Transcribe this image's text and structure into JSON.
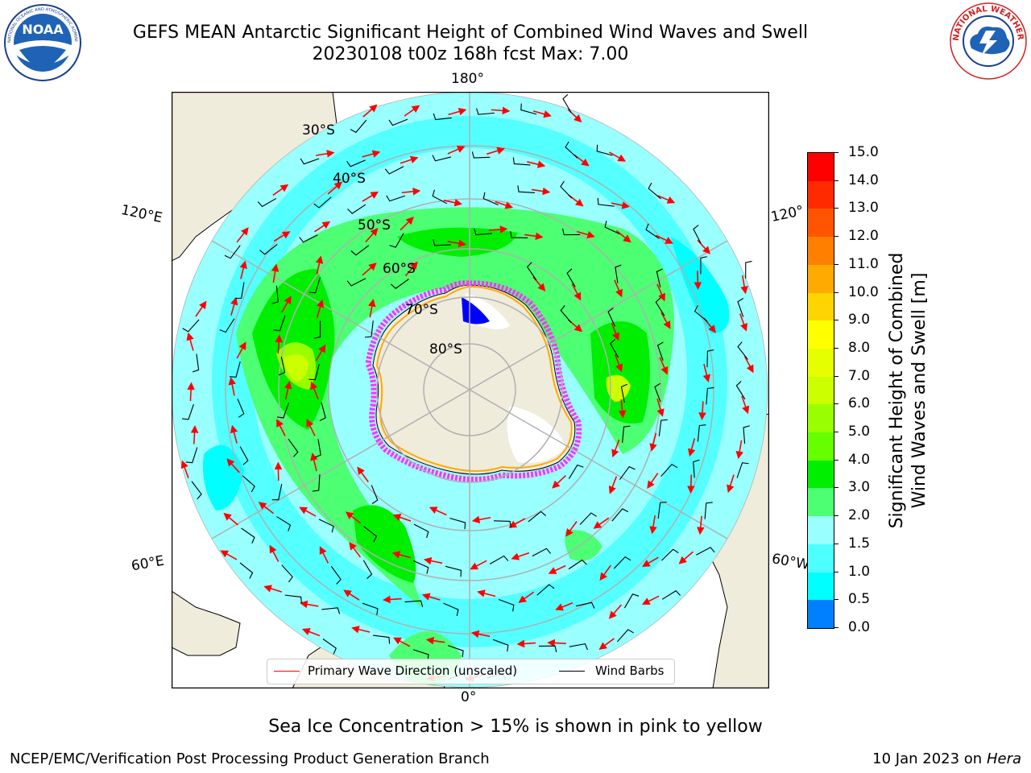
{
  "title": {
    "line1": "GEFS MEAN Antarctic Significant Height of Combined Wind Waves and Swell",
    "line2": "20230108 t00z 168h fcst   Max: 7.00"
  },
  "logos": {
    "left": {
      "text": "NOAA",
      "ring_text": "NATIONAL OCEANIC AND ATMOSPHERIC ADMINISTRATION · U.S. DEPARTMENT OF COMMERCE"
    },
    "right": {
      "ring_text": "NATIONAL WEATHER SERVICE"
    }
  },
  "map": {
    "longitude_labels": {
      "top": "180°",
      "bottom": "0°",
      "upper_left": "120°E",
      "upper_right": "120°",
      "lower_left": "60°E",
      "lower_right": "60°W"
    },
    "latitude_labels": [
      "30°S",
      "40°S",
      "50°S",
      "60°S",
      "70°S",
      "80°S"
    ]
  },
  "legend": {
    "wave_direction": "Primary Wave Direction (unscaled)",
    "wind_barbs": "Wind Barbs"
  },
  "colorbar": {
    "label_line1": "Significant Height of Combined",
    "label_line2": "Wind Waves and Swell [m]",
    "ticks": [
      "15.0",
      "14.0",
      "13.0",
      "12.0",
      "11.0",
      "10.0",
      "9.0",
      "8.0",
      "7.0",
      "6.0",
      "5.0",
      "4.0",
      "3.0",
      "2.0",
      "1.5",
      "1.0",
      "0.5",
      "0.0"
    ],
    "colors": [
      "#ff0000",
      "#ff2a00",
      "#ff5500",
      "#ff8000",
      "#ffaa00",
      "#ffd400",
      "#ffff00",
      "#e6ff00",
      "#ccff00",
      "#99ff00",
      "#66ff00",
      "#00ee00",
      "#4dff73",
      "#99ffff",
      "#4dffff",
      "#00ffff",
      "#0080ff",
      "#0000ff"
    ]
  },
  "colors": {
    "land": "#efecdc",
    "ice_pink": "#ff33ff",
    "wave_arrow": "#ff0000",
    "grid": "#b0b0b0"
  },
  "caption": "Sea Ice Concentration > 15% is shown in pink to yellow",
  "footer": {
    "left": "NCEP/EMC/Verification Post Processing Product Generation Branch",
    "date": "10 Jan 2023 on ",
    "host": "Hera"
  }
}
